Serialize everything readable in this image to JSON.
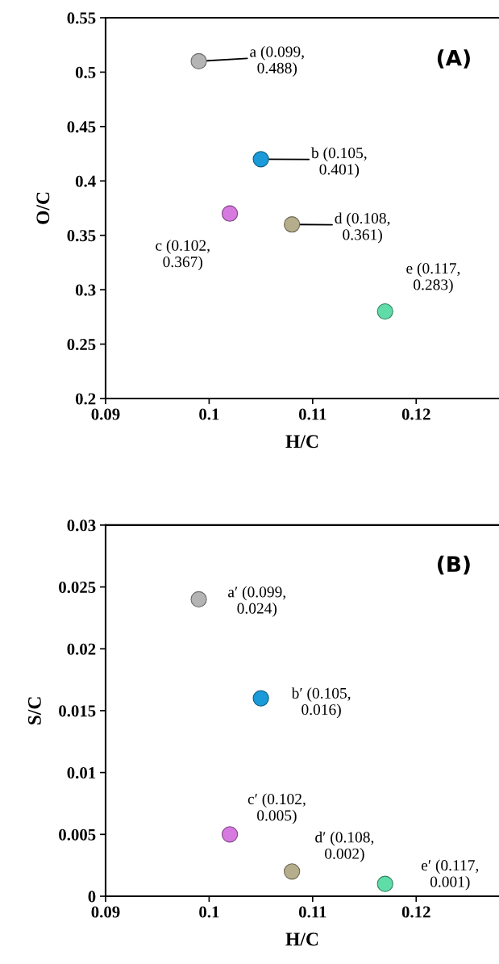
{
  "chart_data": [
    {
      "type": "scatter",
      "title": "(A)",
      "xlabel": "H/C",
      "ylabel": "O/C",
      "marker": "circle",
      "grid": false,
      "x": [
        0.099,
        0.105,
        0.102,
        0.108,
        0.117
      ],
      "values": [
        0.51,
        0.42,
        0.37,
        0.36,
        0.28
      ],
      "colors": [
        "#b4b4b4",
        "#1a9ad8",
        "#d77ae0",
        "#b5ad8c",
        "#5fdca8"
      ],
      "xlim": [
        0.09,
        0.128
      ],
      "xticks": [
        0.09,
        0.1,
        0.11,
        0.12
      ],
      "ylim": [
        0.2,
        0.55
      ],
      "yticks": [
        0.2,
        0.25,
        0.3,
        0.35,
        0.4,
        0.45,
        0.5,
        0.55
      ],
      "annotations": [
        {
          "text": "a (0.099,\n0.488)",
          "x": 0.099,
          "y": 0.51
        },
        {
          "text": "b (0.105,\n0.401)",
          "x": 0.105,
          "y": 0.42
        },
        {
          "text": "c (0.102,\n0.367)",
          "x": 0.102,
          "y": 0.37
        },
        {
          "text": "d (0.108,\n0.361)",
          "x": 0.108,
          "y": 0.36
        },
        {
          "text": "e (0.117,\n0.283)",
          "x": 0.117,
          "y": 0.28
        }
      ]
    },
    {
      "type": "scatter",
      "title": "(B)",
      "xlabel": "H/C",
      "ylabel": "S/C",
      "marker": "circle",
      "grid": false,
      "x": [
        0.099,
        0.105,
        0.102,
        0.108,
        0.117
      ],
      "values": [
        0.024,
        0.016,
        0.005,
        0.002,
        0.001
      ],
      "colors": [
        "#b4b4b4",
        "#1a9ad8",
        "#d77ae0",
        "#b5ad8c",
        "#5fdca8"
      ],
      "xlim": [
        0.09,
        0.128
      ],
      "xticks": [
        0.09,
        0.1,
        0.11,
        0.12
      ],
      "ylim": [
        0,
        0.03
      ],
      "yticks": [
        0,
        0.005,
        0.01,
        0.015,
        0.02,
        0.025,
        0.03
      ],
      "annotations": [
        {
          "text": "a′ (0.099,\n0.024)",
          "x": 0.099,
          "y": 0.024
        },
        {
          "text": "b′ (0.105,\n0.016)",
          "x": 0.105,
          "y": 0.016
        },
        {
          "text": "c′ (0.102,\n0.005)",
          "x": 0.102,
          "y": 0.005
        },
        {
          "text": "d′ (0.108,\n0.002)",
          "x": 0.108,
          "y": 0.002
        },
        {
          "text": "e′ (0.117,\n0.001)",
          "x": 0.117,
          "y": 0.001
        }
      ]
    }
  ]
}
